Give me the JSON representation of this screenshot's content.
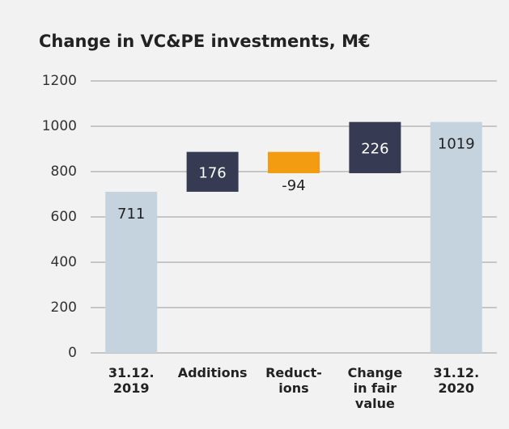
{
  "chart_data": {
    "type": "waterfall",
    "title": "Change in VC&PE investments, M€",
    "categories": [
      [
        "31.12.",
        "2019"
      ],
      [
        "Additions"
      ],
      [
        "Reduct-",
        "ions"
      ],
      [
        "Change",
        "in fair",
        "value"
      ],
      [
        "31.12.",
        "2020"
      ]
    ],
    "values": [
      711,
      176,
      -94,
      226,
      1019
    ],
    "measure": [
      "total",
      "relative",
      "relative",
      "relative",
      "total"
    ],
    "colors": {
      "total": "#c5d3df",
      "increase": "#363a52",
      "decrease": "#f39c12"
    },
    "ylim": [
      0,
      1200
    ],
    "yticks": [
      0,
      200,
      400,
      600,
      800,
      1000,
      1200
    ],
    "grid": true
  }
}
